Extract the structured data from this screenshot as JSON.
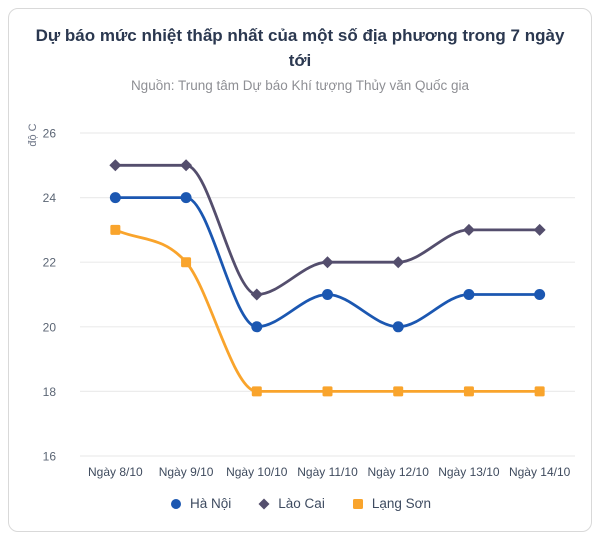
{
  "chart_data": {
    "type": "line",
    "title": "Dự báo mức nhiệt thấp nhất của một số địa phương trong 7 ngày tới",
    "subtitle": "Nguồn: Trung tâm Dự báo Khí tượng Thủy văn Quốc gia",
    "ylabel": "độ C",
    "xlabel": "",
    "categories": [
      "Ngày 8/10",
      "Ngày 9/10",
      "Ngày 10/10",
      "Ngày 11/10",
      "Ngày 12/10",
      "Ngày 13/10",
      "Ngày 14/10"
    ],
    "yticks": [
      16,
      18,
      20,
      22,
      24,
      26
    ],
    "ylim": [
      16,
      26
    ],
    "grid": true,
    "smooth": true,
    "legend_position": "bottom",
    "series": [
      {
        "name": "Hà Nội",
        "marker": "circle",
        "color": "#1b57b1",
        "values": [
          24,
          24,
          20,
          21,
          20,
          21,
          21
        ]
      },
      {
        "name": "Lào Cai",
        "marker": "diamond",
        "color": "#544e6d",
        "values": [
          25,
          25,
          21,
          22,
          22,
          23,
          23
        ]
      },
      {
        "name": "Lạng Sơn",
        "marker": "square",
        "color": "#f9a42c",
        "values": [
          23,
          22,
          18,
          18,
          18,
          18,
          18
        ]
      }
    ]
  },
  "colors": {
    "grid_line": "#ececec",
    "ytick_text": "#5c6675",
    "xtick_text": "#3f4b5e",
    "ylabel_text": "#6e7687",
    "title_text": "#2b3850",
    "subtitle_text": "#8e8f94",
    "legend_text": "#3e4b60",
    "card_border": "#d9d9d9"
  }
}
